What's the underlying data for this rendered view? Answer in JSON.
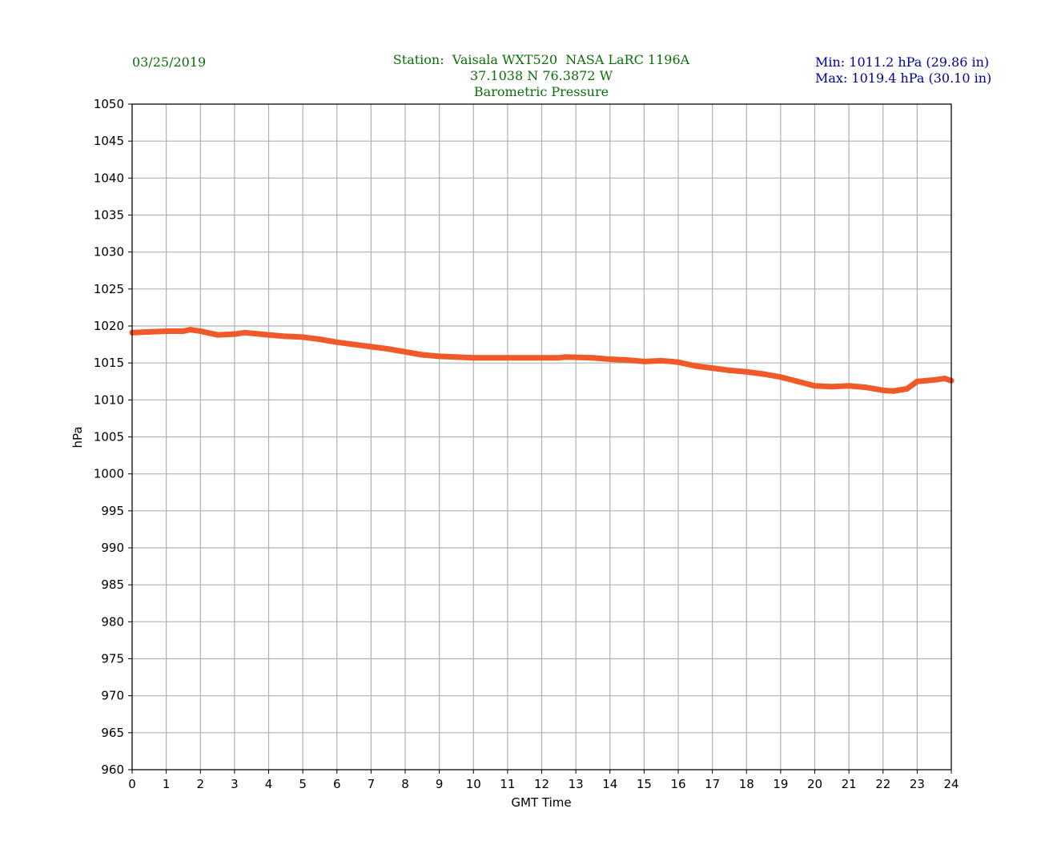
{
  "header": {
    "date": "03/25/2019",
    "station": "Station:  Vaisala WXT520  NASA LaRC 1196A",
    "coords": "37.1038 N 76.3872 W",
    "title": "Barometric Pressure",
    "min": "Min: 1011.2 hPa (29.86 in)",
    "max": "Max: 1019.4 hPa (30.10 in)"
  },
  "chart_data": {
    "type": "line",
    "title": "Barometric Pressure",
    "xlabel": "GMT Time",
    "ylabel": "hPa",
    "xlim": [
      0,
      24
    ],
    "ylim": [
      960,
      1050
    ],
    "xticks": [
      "0",
      "1",
      "2",
      "3",
      "4",
      "5",
      "6",
      "7",
      "8",
      "9",
      "10",
      "11",
      "12",
      "13",
      "14",
      "15",
      "16",
      "17",
      "18",
      "19",
      "20",
      "21",
      "22",
      "23",
      "24"
    ],
    "yticks": [
      "960",
      "965",
      "970",
      "975",
      "980",
      "985",
      "990",
      "995",
      "1000",
      "1005",
      "1010",
      "1015",
      "1020",
      "1025",
      "1030",
      "1035",
      "1040",
      "1045",
      "1050"
    ],
    "grid": true,
    "line_color": "#f05a28",
    "series": [
      {
        "x": [
          0,
          0.5,
          1,
          1.5,
          1.7,
          2,
          2.5,
          3,
          3.3,
          4,
          4.5,
          5,
          5.5,
          6,
          6.5,
          7,
          7.5,
          8,
          8.5,
          9,
          9.5,
          10,
          11,
          12,
          12.5,
          12.7,
          13.5,
          14,
          14.5,
          15,
          15.5,
          15.8,
          16,
          16.5,
          17,
          17.5,
          18,
          18.5,
          19,
          19.5,
          20,
          20.5,
          21,
          21.5,
          22,
          22.3,
          22.7,
          23,
          23.5,
          23.8,
          24
        ],
        "y": [
          1019.1,
          1019.2,
          1019.3,
          1019.3,
          1019.5,
          1019.3,
          1018.8,
          1018.9,
          1019.1,
          1018.8,
          1018.6,
          1018.5,
          1018.2,
          1017.8,
          1017.5,
          1017.2,
          1016.9,
          1016.5,
          1016.1,
          1015.9,
          1015.8,
          1015.7,
          1015.7,
          1015.7,
          1015.7,
          1015.8,
          1015.7,
          1015.5,
          1015.4,
          1015.2,
          1015.3,
          1015.2,
          1015.1,
          1014.6,
          1014.3,
          1014.0,
          1013.8,
          1013.5,
          1013.1,
          1012.5,
          1011.9,
          1011.8,
          1011.9,
          1011.7,
          1011.3,
          1011.2,
          1011.5,
          1012.5,
          1012.7,
          1012.9,
          1012.6
        ]
      }
    ]
  }
}
